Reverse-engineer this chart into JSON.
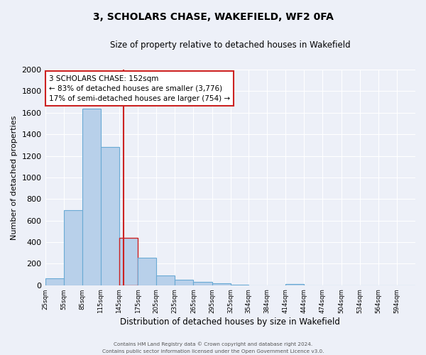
{
  "title": "3, SCHOLARS CHASE, WAKEFIELD, WF2 0FA",
  "subtitle": "Size of property relative to detached houses in Wakefield",
  "xlabel": "Distribution of detached houses by size in Wakefield",
  "ylabel": "Number of detached properties",
  "bar_color": "#b8d0ea",
  "bar_edge_color": "#6aaad4",
  "highlight_bar_edge_color": "#cc2222",
  "vline_color": "#cc2222",
  "vline_x": 152,
  "annotation_title": "3 SCHOLARS CHASE: 152sqm",
  "annotation_line1": "← 83% of detached houses are smaller (3,776)",
  "annotation_line2": "17% of semi-detached houses are larger (754) →",
  "annotation_box_color": "#ffffff",
  "annotation_box_edge": "#cc2222",
  "bins": [
    25,
    55,
    85,
    115,
    145,
    175,
    205,
    235,
    265,
    295,
    325,
    354,
    384,
    414,
    444,
    474,
    504,
    534,
    564,
    594,
    624
  ],
  "counts": [
    65,
    695,
    1635,
    1285,
    440,
    255,
    90,
    52,
    28,
    20,
    5,
    0,
    0,
    10,
    0,
    0,
    0,
    0,
    0,
    0
  ],
  "ylim": [
    0,
    2000
  ],
  "yticks": [
    0,
    200,
    400,
    600,
    800,
    1000,
    1200,
    1400,
    1600,
    1800,
    2000
  ],
  "background_color": "#edf0f8",
  "plot_bg_color": "#edf0f8",
  "footer1": "Contains HM Land Registry data © Crown copyright and database right 2024.",
  "footer2": "Contains public sector information licensed under the Open Government Licence v3.0."
}
